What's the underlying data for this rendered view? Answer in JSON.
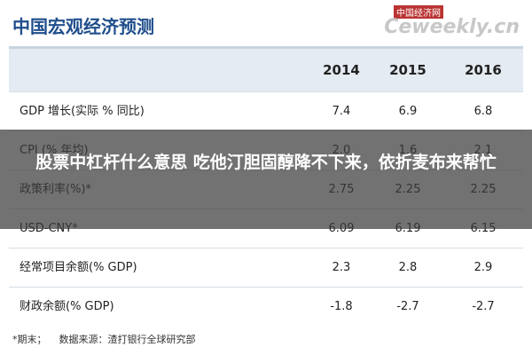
{
  "header": {
    "title": "中国宏观经济预测",
    "watermark": "中国经济网",
    "watermark_site": "Ceweekly.cn"
  },
  "table": {
    "columns": [
      "2014",
      "2015",
      "2016"
    ],
    "rows": [
      [
        "GDP 增长(实际 % 同比)",
        "7.4",
        "6.9",
        "6.8"
      ],
      [
        "CPI (% 年均)",
        "2.0",
        "1.6",
        "2.1"
      ],
      [
        "政策利率(%)*",
        "2.75",
        "2.25",
        "2.25"
      ],
      [
        "USD-CNY*",
        "6.09",
        "6.19",
        "6.15"
      ],
      [
        "经常项目余额(% GDP)",
        "2.3",
        "2.8",
        "2.9"
      ],
      [
        "财政余额(% GDP)",
        "-1.8",
        "-2.7",
        "-2.7"
      ]
    ]
  },
  "footer": {
    "note": "*期末；",
    "source": "数据来源：渣打银行全球研究部"
  },
  "overlay": {
    "text": "股票中杠杆什么意思 吃他汀胆固醇降不下来，依折麦布来帮忙"
  }
}
